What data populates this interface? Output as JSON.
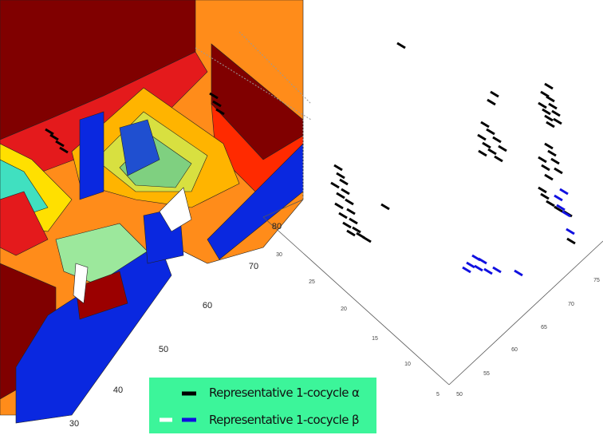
{
  "left_axis": {
    "ticks": [
      "80",
      "70",
      "60",
      "50",
      "40",
      "30"
    ]
  },
  "right_axes": {
    "axis_1": {
      "ticks": [
        "5",
        "10",
        "15",
        "20",
        "25",
        "30"
      ]
    },
    "axis_2": {
      "ticks": [
        "50",
        "55",
        "60",
        "65",
        "70",
        "75"
      ]
    }
  },
  "legend": {
    "items": [
      {
        "label": "Representative 1-cocycle α"
      },
      {
        "label": "Representative 1-cocycle β"
      }
    ]
  }
}
